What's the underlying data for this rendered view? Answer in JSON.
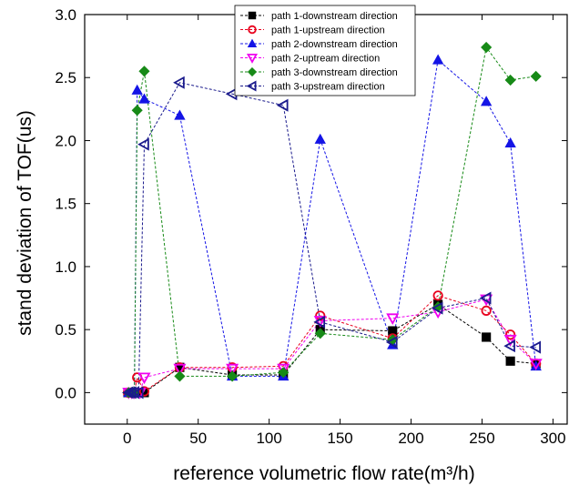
{
  "chart_data": {
    "type": "scatter",
    "xlabel": "reference volumetric flow rate(m³/h)",
    "ylabel": "stand deviation of TOF(us)",
    "xlim": [
      -30,
      310
    ],
    "ylim": [
      -0.25,
      3.0
    ],
    "xticks": [
      "0",
      "50",
      "100",
      "150",
      "200",
      "250",
      "300"
    ],
    "yticks": [
      "0.0",
      "0.5",
      "1.0",
      "1.5",
      "2.0",
      "2.5",
      "3.0"
    ],
    "grid": false,
    "legend_position": "top-center",
    "series": [
      {
        "name": "path 1-downstream direction",
        "color": "#000000",
        "marker": "square-filled",
        "points": [
          [
            0.5,
            0.0
          ],
          [
            1.5,
            0.0
          ],
          [
            2.5,
            0.0
          ],
          [
            3.5,
            0.0
          ],
          [
            5,
            0.0
          ],
          [
            6,
            0.0
          ],
          [
            7,
            0.0
          ],
          [
            12,
            0.0
          ],
          [
            37,
            0.2
          ],
          [
            74,
            0.14
          ],
          [
            110,
            0.14
          ],
          [
            136,
            0.5
          ],
          [
            187,
            0.49
          ],
          [
            219,
            0.7
          ],
          [
            253,
            0.44
          ],
          [
            270,
            0.25
          ],
          [
            288,
            0.23
          ]
        ]
      },
      {
        "name": "path 1-upstream direction",
        "color": "#e8001c",
        "marker": "circle-open",
        "points": [
          [
            0.5,
            0.0
          ],
          [
            2.5,
            0.0
          ],
          [
            4,
            0.0
          ],
          [
            5,
            0.0
          ],
          [
            7,
            0.12
          ],
          [
            12,
            0.01
          ],
          [
            37,
            0.2
          ],
          [
            74,
            0.2
          ],
          [
            110,
            0.21
          ],
          [
            136,
            0.61
          ],
          [
            187,
            0.43
          ],
          [
            219,
            0.77
          ],
          [
            253,
            0.65
          ],
          [
            270,
            0.46
          ],
          [
            288,
            0.23
          ]
        ]
      },
      {
        "name": "path 2-downstream direction",
        "color": "#1414e6",
        "marker": "triangle-up-filled",
        "points": [
          [
            1,
            0.0
          ],
          [
            3,
            0.0
          ],
          [
            5,
            0.0
          ],
          [
            7,
            2.4
          ],
          [
            12,
            2.33
          ],
          [
            37,
            2.2
          ],
          [
            74,
            0.13
          ],
          [
            110,
            0.13
          ],
          [
            136,
            2.01
          ],
          [
            187,
            0.38
          ],
          [
            219,
            2.64
          ],
          [
            253,
            2.31
          ],
          [
            270,
            1.98
          ],
          [
            288,
            0.21
          ]
        ]
      },
      {
        "name": "path 2-uptream direction",
        "color": "#f000f0",
        "marker": "triangle-down-open",
        "points": [
          [
            1,
            0.0
          ],
          [
            3,
            0.0
          ],
          [
            5,
            0.0
          ],
          [
            9,
            0.0
          ],
          [
            12,
            0.12
          ],
          [
            37,
            0.19
          ],
          [
            74,
            0.19
          ],
          [
            110,
            0.19
          ],
          [
            136,
            0.57
          ],
          [
            187,
            0.59
          ],
          [
            219,
            0.64
          ],
          [
            253,
            0.74
          ],
          [
            270,
            0.42
          ],
          [
            288,
            0.23
          ]
        ]
      },
      {
        "name": "path 3-downstream direction",
        "color": "#178a17",
        "marker": "diamond-filled",
        "points": [
          [
            1,
            0.0
          ],
          [
            3,
            0.0
          ],
          [
            5,
            0.0
          ],
          [
            7,
            2.24
          ],
          [
            12,
            2.55
          ],
          [
            37,
            0.13
          ],
          [
            74,
            0.13
          ],
          [
            110,
            0.16
          ],
          [
            136,
            0.47
          ],
          [
            187,
            0.42
          ],
          [
            219,
            0.68
          ],
          [
            253,
            2.74
          ],
          [
            270,
            2.48
          ],
          [
            288,
            2.51
          ]
        ]
      },
      {
        "name": "path 3-upstream direction",
        "color": "#1a1a8c",
        "marker": "triangle-left-open",
        "points": [
          [
            1,
            0.0
          ],
          [
            3,
            0.0
          ],
          [
            5,
            0.0
          ],
          [
            8,
            0.0
          ],
          [
            12,
            1.97
          ],
          [
            37,
            2.46
          ],
          [
            74,
            2.37
          ],
          [
            110,
            2.28
          ],
          [
            136,
            0.56
          ],
          [
            187,
            0.4
          ],
          [
            219,
            0.67
          ],
          [
            253,
            0.75
          ],
          [
            270,
            0.37
          ],
          [
            288,
            0.36
          ]
        ]
      }
    ]
  }
}
